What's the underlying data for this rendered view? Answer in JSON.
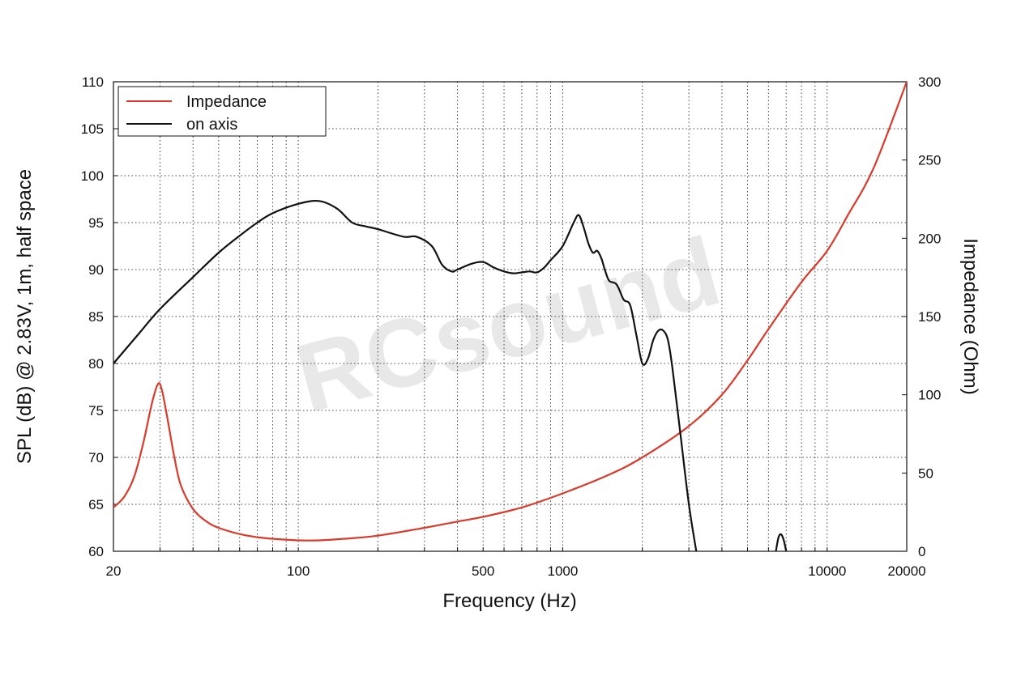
{
  "chart_data": {
    "type": "line",
    "xlabel": "Frequency (Hz)",
    "ylabel": "SPL (dB) @ 2.83V, 1m, half space",
    "y2label": "Impedance (Ohm)",
    "xscale": "log",
    "xlim": [
      20,
      20000
    ],
    "ylim": [
      60,
      110
    ],
    "y2lim": [
      0,
      300
    ],
    "x_ticks": [
      20,
      100,
      500,
      1000,
      10000,
      20000
    ],
    "y_ticks": [
      60,
      65,
      70,
      75,
      80,
      85,
      90,
      95,
      100,
      105,
      110
    ],
    "y2_ticks": [
      0,
      50,
      100,
      150,
      200,
      250,
      300
    ],
    "grid": true,
    "legend_position": "top-left",
    "watermark": "RCsound",
    "series": [
      {
        "name": "Impedance",
        "axis": "right",
        "color": "#d93a2b",
        "x": [
          20,
          22,
          24,
          26,
          28,
          29.5,
          30.5,
          32,
          34,
          36,
          40,
          45,
          50,
          60,
          70,
          80,
          100,
          120,
          150,
          200,
          300,
          400,
          500,
          700,
          1000,
          1500,
          2000,
          3000,
          4000,
          5000,
          6000,
          8000,
          10000,
          12000,
          15000,
          20000
        ],
        "y": [
          28,
          35,
          48,
          70,
          95,
          107,
          103,
          85,
          60,
          42,
          27,
          19,
          15,
          11,
          9,
          8,
          7,
          7,
          8,
          10,
          15,
          19,
          22,
          28,
          37,
          49,
          60,
          80,
          100,
          122,
          142,
          172,
          192,
          215,
          245,
          300
        ]
      },
      {
        "name": "on axis",
        "axis": "left",
        "color": "#111111",
        "segments": [
          {
            "x": [
              20,
              25,
              30,
              40,
              50,
              60,
              70,
              80,
              100,
              120,
              140,
              160,
              180,
              200,
              250,
              280,
              320,
              350,
              380,
              400,
              450,
              500,
              550,
              600,
              650,
              700,
              750,
              800,
              850,
              900,
              1000,
              1100,
              1150,
              1200,
              1250,
              1300,
              1350,
              1400,
              1450,
              1500,
              1600,
              1700,
              1800,
              1900,
              2000,
              2100,
              2200,
              2300,
              2400,
              2500,
              2600,
              2800,
              3000,
              3200
            ],
            "y": [
              80,
              83.2,
              85.8,
              89.2,
              91.8,
              93.6,
              95,
              96,
              97,
              97.3,
              96.5,
              95,
              94.6,
              94.3,
              93.5,
              93.5,
              92.5,
              90.5,
              89.8,
              90,
              90.6,
              90.8,
              90.2,
              89.8,
              89.6,
              89.7,
              89.8,
              89.7,
              90.2,
              91,
              92.5,
              95,
              95.8,
              94.5,
              92.8,
              91.8,
              92,
              91.2,
              89.8,
              88.8,
              88.4,
              86.8,
              86.2,
              83,
              80,
              80.5,
              82.5,
              83.5,
              83.5,
              82.5,
              79.5,
              72,
              65,
              60
            ]
          },
          {
            "x": [
              6400,
              6550,
              6700,
              6850,
              7000
            ],
            "y": [
              60,
              61.5,
              61.8,
              61.2,
              60
            ]
          }
        ]
      }
    ]
  }
}
